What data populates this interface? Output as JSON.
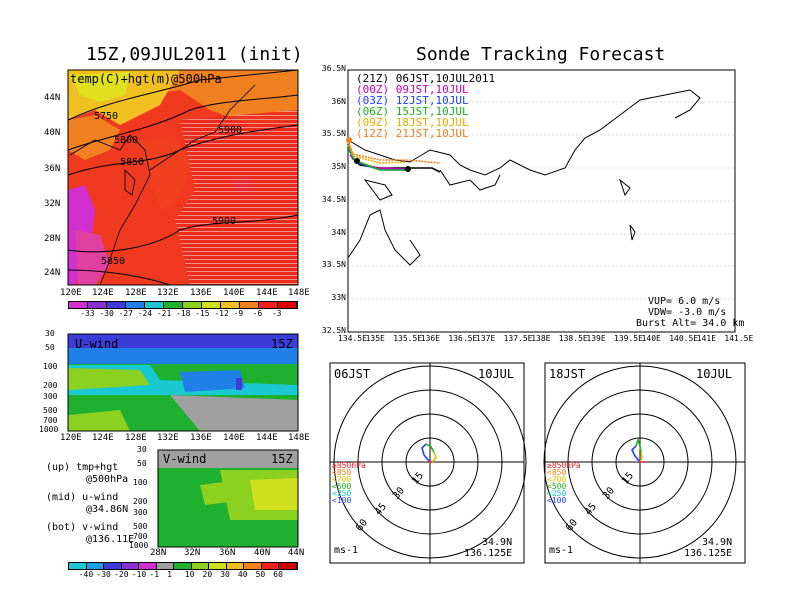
{
  "title_left": "15Z,09JUL2011 (init)",
  "title_right": "Sonde Tracking Forecast",
  "top_map": {
    "label": "temp(C)+hgt(m)@500hPa",
    "lat_labels": [
      "44N",
      "40N",
      "36N",
      "32N",
      "28N",
      "24N"
    ],
    "lon_labels": [
      "120E",
      "124E",
      "128E",
      "132E",
      "136E",
      "140E",
      "144E",
      "148E"
    ],
    "contour_labels": [
      "5750",
      "5800",
      "5850",
      "5900",
      "5900",
      "5850"
    ],
    "colorbar": {
      "ticks": [
        "-33",
        "-30",
        "-27",
        "-24",
        "-21",
        "-18",
        "-15",
        "-12",
        "-9",
        "-6",
        "-3"
      ],
      "colors": [
        "#d22fd0",
        "#8c2fd0",
        "#3c3cd8",
        "#2080e8",
        "#19c8d0",
        "#20b030",
        "#8cd020",
        "#d0e020",
        "#f0c020",
        "#f08020",
        "#f02020",
        "#e00000"
      ]
    }
  },
  "u_wind": {
    "label": "U-wind",
    "time": "15Z",
    "p_labels": [
      "30",
      "50",
      "100",
      "200",
      "300",
      "500",
      "700",
      "1000"
    ],
    "lon_labels": [
      "120E",
      "124E",
      "128E",
      "132E",
      "136E",
      "140E",
      "144E",
      "148E"
    ]
  },
  "v_wind": {
    "label": "V-wind",
    "time": "15Z",
    "p_labels": [
      "30",
      "50",
      "100",
      "200",
      "300",
      "500",
      "700",
      "1000"
    ],
    "lat_labels": [
      "28N",
      "32N",
      "36N",
      "40N",
      "44N"
    ]
  },
  "legend_text": {
    "up1": "(up) tmp+hgt",
    "up2": "@500hPa",
    "mid1": "(mid) u-wind",
    "mid2": "@34.86N",
    "bot1": "(bot) v-wind",
    "bot2": "@136.11E"
  },
  "wind_colorbar": {
    "ticks": [
      "-40",
      "-30",
      "-20",
      "-10",
      "-1",
      "1",
      "10",
      "20",
      "30",
      "40",
      "50",
      "60"
    ],
    "colors": [
      "#19c8d0",
      "#1aa0e8",
      "#3c3cd8",
      "#8c2fd0",
      "#d22fd0",
      "#a0a0a0",
      "#20b030",
      "#8cd020",
      "#d0e020",
      "#f0c020",
      "#f08020",
      "#f02020",
      "#d00000"
    ]
  },
  "track_map": {
    "lat_labels": [
      "36.5N",
      "36N",
      "35.5N",
      "35N",
      "34.5N",
      "34N",
      "33.5N",
      "33N",
      "32.5N"
    ],
    "lon_labels": [
      "134.5E",
      "135E",
      "135.5E",
      "136E",
      "136.5E",
      "137E",
      "137.5E",
      "138E",
      "138.5E",
      "139E",
      "139.5E",
      "140E",
      "140.5E",
      "141E",
      "141.5E"
    ],
    "legend": [
      {
        "text": "(21Z) 06JST,10JUL2011",
        "color": "#000000"
      },
      {
        "text": "(00Z) 09JST,10JUL",
        "color": "#c000c0"
      },
      {
        "text": "(03Z) 12JST,10JUL",
        "color": "#2040ff"
      },
      {
        "text": "(06Z) 15JST,10JUL",
        "color": "#20b020"
      },
      {
        "text": "(09Z) 18JST,10JUL",
        "color": "#e0b000"
      },
      {
        "text": "(12Z) 21JST,10JUL",
        "color": "#f08020"
      }
    ],
    "vup": "VUP=  6.0 m/s",
    "vdw": "VDW= -3.0 m/s",
    "burst": "Burst Alt= 34.0 km"
  },
  "hodo_left": {
    "time": "06JST",
    "date": "10JUL",
    "rings": [
      "15",
      "30",
      "45",
      "60"
    ],
    "unit": "ms-1",
    "lat": "34.9N",
    "lon": "136.125E",
    "levels": [
      {
        "text": "≥850hPa",
        "color": "#f02020"
      },
      {
        "text": "<850",
        "color": "#f08020"
      },
      {
        "text": "<700",
        "color": "#e0c000"
      },
      {
        "text": "<500",
        "color": "#20b020"
      },
      {
        "text": "<250",
        "color": "#19c8d0"
      },
      {
        "text": "<100",
        "color": "#2040ff"
      }
    ]
  },
  "hodo_right": {
    "time": "18JST",
    "date": "10JUL",
    "rings": [
      "15",
      "30",
      "45",
      "60"
    ],
    "unit": "ms-1",
    "lat": "34.9N",
    "lon": "136.125E",
    "levels": [
      {
        "text": "≥850hPa",
        "color": "#f02020"
      },
      {
        "text": "<850",
        "color": "#f08020"
      },
      {
        "text": "<700",
        "color": "#e0c000"
      },
      {
        "text": "<500",
        "color": "#20b020"
      },
      {
        "text": "<250",
        "color": "#19c8d0"
      },
      {
        "text": "<100",
        "color": "#2040ff"
      }
    ]
  },
  "chart_data": [
    {
      "type": "heatmap",
      "title": "temp(C)+hgt(m)@500hPa",
      "xlabel": "",
      "ylabel": "",
      "x_range": [
        "120E",
        "148E"
      ],
      "y_range": [
        "24N",
        "44N"
      ]
    },
    {
      "type": "heatmap",
      "title": "U-wind",
      "x_range": [
        "120E",
        "148E"
      ],
      "y_range": [
        "1000",
        "30"
      ]
    },
    {
      "type": "heatmap",
      "title": "V-wind",
      "x_range": [
        "28N",
        "44N"
      ],
      "y_range": [
        "1000",
        "30"
      ]
    },
    {
      "type": "line",
      "title": "Sonde Tracking Forecast",
      "x_range": [
        "134.5E",
        "141.5E"
      ],
      "y_range": [
        "32.5N",
        "36.5N"
      ]
    }
  ]
}
